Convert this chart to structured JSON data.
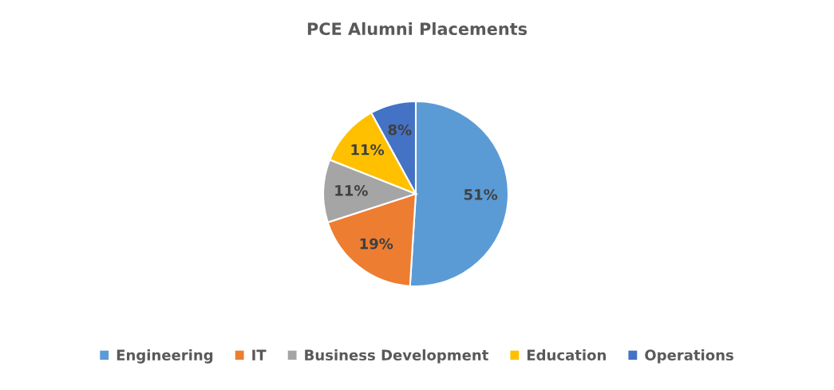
{
  "chart_data": {
    "type": "pie",
    "title": "PCE Alumni Placements",
    "categories": [
      "Engineering",
      "IT",
      "Business Development",
      "Education",
      "Operations"
    ],
    "values": [
      51,
      19,
      11,
      11,
      8
    ],
    "colors": [
      "#5b9bd5",
      "#ed7d31",
      "#a5a5a5",
      "#ffc000",
      "#4472c4"
    ],
    "value_labels": [
      "51%",
      "19%",
      "11%",
      "11%",
      "8%"
    ],
    "legend": "bottom"
  }
}
